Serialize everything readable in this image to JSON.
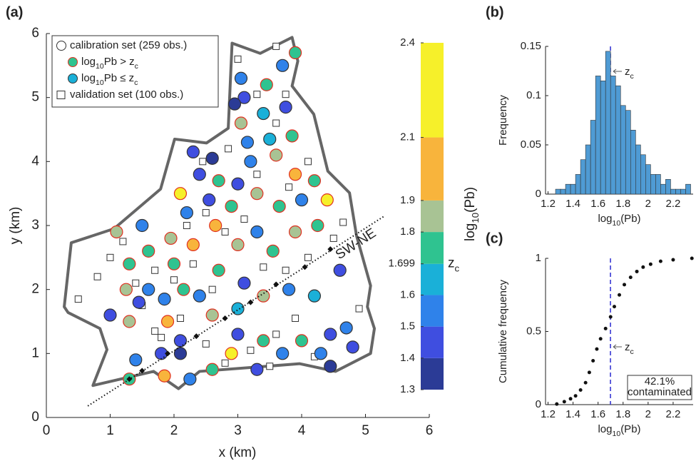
{
  "chart_data": [
    {
      "type": "map-scatter",
      "panel": "(a)",
      "xlabel": "x (km)",
      "ylabel": "y (km)",
      "xlim": [
        0,
        6
      ],
      "ylim": [
        0,
        6
      ],
      "xticks": [
        0,
        1,
        2,
        3,
        4,
        5,
        6
      ],
      "yticks": [
        0,
        1,
        2,
        3,
        4,
        5,
        6
      ],
      "zc": 1.699,
      "exceed_edge_color": "#e03020",
      "boundary": {
        "color": "#666666",
        "x": [
          0.28,
          0.39,
          1.06,
          1.79,
          2.01,
          2.51,
          2.85,
          2.91,
          3.35,
          3.85,
          3.94,
          3.85,
          4.19,
          4.41,
          4.75,
          4.86,
          5.08,
          5.03,
          5.14,
          5.08,
          4.53,
          3.97,
          2.4,
          2.07,
          1.68,
          0.73,
          0.95,
          0.84,
          0.34
        ],
        "y": [
          1.73,
          2.73,
          2.95,
          3.57,
          4.35,
          4.29,
          4.52,
          5.85,
          5.69,
          5.94,
          5.57,
          5.18,
          4.74,
          3.85,
          3.51,
          2.84,
          2.06,
          1.73,
          1.39,
          1.0,
          0.72,
          0.84,
          0.72,
          0.45,
          0.72,
          0.5,
          1.06,
          1.39,
          1.64
        ]
      },
      "transect": {
        "label": "SW-NE",
        "x": [
          0.65,
          5.3
        ],
        "y": [
          0.18,
          3.15
        ],
        "points_x": [
          1.3,
          1.5,
          1.9,
          2.35,
          2.8,
          3.2,
          3.6,
          4.05,
          4.45
        ],
        "points_y": [
          0.6,
          0.73,
          1.0,
          1.27,
          1.55,
          1.8,
          2.08,
          2.35,
          2.63
        ]
      },
      "legend": [
        "calibration set (259 obs.)",
        [
          "log",
          "10",
          "Pb > z",
          "c"
        ],
        [
          "log",
          "10",
          "Pb ≤ z",
          "c"
        ],
        "validation set (100 obs.)"
      ],
      "calibration": {
        "x": [
          1.25,
          1.6,
          1.0,
          1.3,
          1.45,
          1.85,
          2.15,
          2.4,
          1.9,
          2.1,
          1.8,
          1.4,
          1.85,
          2.25,
          2.6,
          2.9,
          3.3,
          3.0,
          3.4,
          3.7,
          4.0,
          4.3,
          4.45,
          4.7,
          4.8,
          2.6,
          3.0,
          3.4,
          3.8,
          4.2,
          4.6,
          3.1,
          2.7,
          2.3,
          2.0,
          1.6,
          1.3,
          1.1,
          1.5,
          1.95,
          2.65,
          3.0,
          3.3,
          3.55,
          3.9,
          4.25,
          4.4,
          4.0,
          3.65,
          3.3,
          2.9,
          2.55,
          2.2,
          2.1,
          2.4,
          2.7,
          3.0,
          3.2,
          3.6,
          3.9,
          4.2,
          3.85,
          3.5,
          3.15,
          2.6,
          2.3,
          3.05,
          3.4,
          3.75,
          3.1,
          3.45,
          3.7,
          3.9,
          3.05,
          2.95,
          4.45,
          2.1,
          1.3
        ],
        "y": [
          2.0,
          2.0,
          1.6,
          1.5,
          1.8,
          1.85,
          2.0,
          1.9,
          1.5,
          1.2,
          1.0,
          0.9,
          0.65,
          0.6,
          0.75,
          1.0,
          0.75,
          1.3,
          1.2,
          1.0,
          1.2,
          1.0,
          1.3,
          1.4,
          1.1,
          1.6,
          1.7,
          1.9,
          2.0,
          1.9,
          2.3,
          2.1,
          2.3,
          2.7,
          2.4,
          2.6,
          2.4,
          2.9,
          3.0,
          2.8,
          3.0,
          2.7,
          2.9,
          2.6,
          2.9,
          3.0,
          3.4,
          3.4,
          3.3,
          3.5,
          3.3,
          3.4,
          3.2,
          3.5,
          3.8,
          3.7,
          3.65,
          4.0,
          4.1,
          3.8,
          3.7,
          4.4,
          4.35,
          4.3,
          4.05,
          4.15,
          4.6,
          4.75,
          4.85,
          5.0,
          5.2,
          5.5,
          5.7,
          5.3,
          4.9,
          0.8,
          1.0,
          0.6
        ],
        "values": [
          1.85,
          1.55,
          1.5,
          1.88,
          1.45,
          1.55,
          1.75,
          1.6,
          1.95,
          1.5,
          1.45,
          1.6,
          2.0,
          1.55,
          1.75,
          2.3,
          1.45,
          1.5,
          1.7,
          1.6,
          1.75,
          1.55,
          1.5,
          1.55,
          1.5,
          1.85,
          1.65,
          1.9,
          1.55,
          1.65,
          1.5,
          1.5,
          1.8,
          1.95,
          1.75,
          1.8,
          1.7,
          1.85,
          1.6,
          1.9,
          2.1,
          1.85,
          1.6,
          1.75,
          1.85,
          1.7,
          2.2,
          1.6,
          1.75,
          1.85,
          1.7,
          1.45,
          1.55,
          2.3,
          1.45,
          1.75,
          1.45,
          1.55,
          1.85,
          1.95,
          1.7,
          1.75,
          1.65,
          1.6,
          1.4,
          1.5,
          1.9,
          1.65,
          1.5,
          1.45,
          1.75,
          1.55,
          1.8,
          1.6,
          1.35,
          1.35,
          1.4,
          1.75
        ]
      },
      "validation": {
        "x": [
          0.5,
          0.8,
          1.0,
          1.2,
          1.5,
          1.7,
          2.0,
          2.3,
          2.6,
          1.8,
          2.1,
          2.5,
          2.8,
          3.2,
          3.6,
          3.9,
          4.2,
          3.5,
          2.2,
          2.5,
          2.8,
          3.1,
          3.4,
          3.75,
          4.1,
          4.5,
          4.65,
          3.8,
          4.1,
          3.3,
          2.85,
          2.45,
          3.6,
          3.3,
          3.75,
          3.6,
          3.0,
          1.4,
          1.7,
          4.9
        ],
        "y": [
          1.85,
          2.2,
          2.5,
          2.75,
          1.75,
          2.3,
          2.15,
          2.4,
          2.0,
          1.25,
          1.55,
          1.15,
          0.85,
          1.05,
          1.3,
          1.55,
          0.95,
          0.8,
          3.0,
          3.2,
          2.9,
          3.1,
          2.35,
          2.3,
          2.5,
          2.8,
          3.05,
          3.6,
          4.0,
          3.8,
          4.2,
          4.0,
          4.6,
          5.05,
          5.05,
          5.8,
          5.6,
          2.1,
          1.35,
          1.7
        ]
      },
      "colorbar": {
        "label": [
          "log",
          "10",
          "(Pb)"
        ],
        "zc_label": [
          "z",
          "c"
        ],
        "lim": [
          1.3,
          2.4
        ],
        "ticks": [
          1.3,
          1.4,
          1.5,
          1.6,
          1.699,
          1.8,
          1.9,
          2.1,
          2.4
        ],
        "bounds": [
          1.3,
          1.4,
          1.5,
          1.6,
          1.699,
          1.8,
          1.9,
          2.1,
          2.4
        ],
        "colors": [
          "#2b3b96",
          "#3f4ee0",
          "#2f82ea",
          "#1ab0d8",
          "#2fc390",
          "#a8c394",
          "#f8b43c",
          "#f6f02a"
        ]
      }
    },
    {
      "type": "histogram",
      "panel": "(b)",
      "ylabel": "Frequency",
      "xlabel": [
        "log",
        "10",
        "(Pb)"
      ],
      "color": "#4f9bd4",
      "xlim": [
        1.18,
        2.36
      ],
      "ylim": [
        0,
        0.15
      ],
      "xticks": [
        1.2,
        1.4,
        1.6,
        1.8,
        2,
        2.2
      ],
      "yticks": [
        0,
        0.05,
        0.1,
        0.15
      ],
      "zc": 1.699,
      "zc_label": [
        "z",
        "c"
      ],
      "bins": [
        1.26,
        1.3,
        1.34,
        1.38,
        1.42,
        1.46,
        1.5,
        1.54,
        1.58,
        1.62,
        1.66,
        1.7,
        1.74,
        1.78,
        1.82,
        1.86,
        1.9,
        1.94,
        1.98,
        2.02,
        2.06,
        2.1,
        2.14,
        2.18,
        2.22,
        2.26,
        2.3,
        2.34
      ],
      "values": [
        0.005,
        0.005,
        0.01,
        0.01,
        0.02,
        0.035,
        0.05,
        0.075,
        0.12,
        0.115,
        0.145,
        0.12,
        0.11,
        0.09,
        0.085,
        0.065,
        0.05,
        0.04,
        0.03,
        0.02,
        0.02,
        0.01,
        0.015,
        0.005,
        0.005,
        0.005,
        0.01
      ]
    },
    {
      "type": "cdf",
      "panel": "(c)",
      "ylabel": "Cumulative frequency",
      "xlabel": [
        "log",
        "10",
        "(Pb)"
      ],
      "color": "#111111",
      "xlim": [
        1.18,
        2.36
      ],
      "ylim": [
        0,
        1
      ],
      "xticks": [
        1.2,
        1.4,
        1.6,
        1.8,
        2,
        2.2
      ],
      "yticks": [
        0,
        0.5,
        1
      ],
      "zc": 1.699,
      "zc_label": [
        "z",
        "c"
      ],
      "annotation": [
        "42.1%",
        "contaminated"
      ],
      "x": [
        1.27,
        1.33,
        1.38,
        1.42,
        1.46,
        1.5,
        1.53,
        1.56,
        1.59,
        1.62,
        1.66,
        1.7,
        1.73,
        1.77,
        1.81,
        1.86,
        1.91,
        1.96,
        2.02,
        2.1,
        2.2,
        2.35
      ],
      "y": [
        0.004,
        0.02,
        0.04,
        0.06,
        0.1,
        0.15,
        0.22,
        0.3,
        0.38,
        0.45,
        0.52,
        0.6,
        0.67,
        0.75,
        0.82,
        0.87,
        0.91,
        0.94,
        0.96,
        0.98,
        0.99,
        1.0
      ]
    }
  ]
}
